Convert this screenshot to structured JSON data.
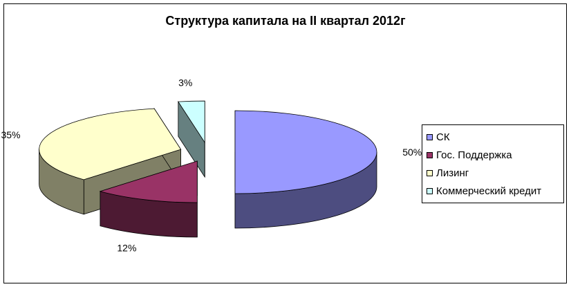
{
  "chart_data": {
    "type": "pie",
    "title": "Структура капитала на II квартал 2012г",
    "slices": [
      {
        "label": "СК",
        "value": 50,
        "display": "50%",
        "color": "#9999ff",
        "side_color": "#4d4d80"
      },
      {
        "label": "Гос. Поддержка",
        "value": 12,
        "display": "12%",
        "color": "#993366",
        "side_color": "#4d1a33"
      },
      {
        "label": "Лизинг",
        "value": 35,
        "display": "35%",
        "color": "#ffffcc",
        "side_color": "#808066"
      },
      {
        "label": "Коммерческий кредит",
        "value": 3,
        "display": "3%",
        "color": "#ccffff",
        "side_color": "#668080"
      }
    ],
    "legend_position": "right",
    "exploded": true,
    "three_d": true
  }
}
